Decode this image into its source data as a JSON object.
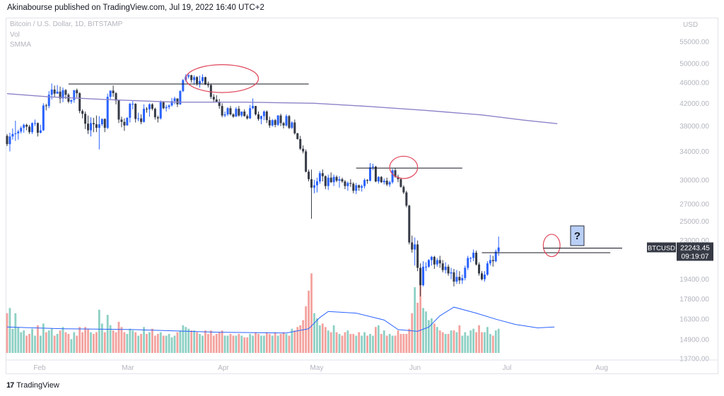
{
  "header": {
    "text": "Akinabourse published on TradingView.com, Jul 19, 2022 16:40 UTC+2"
  },
  "legend": {
    "symbol": "Bitcoin / U.S. Dollar, 1D, BITSTAMP",
    "vol": "Vol",
    "smma": "SMMA"
  },
  "footer": {
    "brand": "TradingView",
    "logo": "17"
  },
  "price_label": {
    "ticker": "BTCUSD",
    "price": "22243.45",
    "countdown": "09:19:07"
  },
  "annotation": {
    "text": "?"
  },
  "colors": {
    "up": "#2962ff",
    "down": "#363a45",
    "smma": "#8c83c8",
    "vol_up": "#8dd0c4",
    "vol_down": "#f3a29e",
    "vol_ma": "#2962ff",
    "circle": "#e0465a"
  },
  "chart_data": {
    "type": "candlestick",
    "y_axis": {
      "unit": "USD",
      "scale": "log",
      "ticks": [
        55000,
        50000,
        46000,
        42000,
        38000,
        34000,
        30000,
        27000,
        25000,
        23000,
        19400,
        17800,
        16300,
        14900,
        13700
      ],
      "tick_labels": [
        "55000.00",
        "50000.00",
        "46000.00",
        "42000.00",
        "38000.00",
        "34000.00",
        "30000.00",
        "27000.00",
        "25000.00",
        "23000.00",
        "19400.00",
        "17800.00",
        "16300.00",
        "14900.00",
        "13700.00"
      ]
    },
    "x_axis": {
      "ticks": [
        "Feb",
        "Mar",
        "Apr",
        "May",
        "Jun",
        "Jul",
        "Aug"
      ]
    },
    "start_date": "2022-01-22",
    "ohlc": [
      [
        36400,
        36700,
        34800,
        35100
      ],
      [
        35100,
        36900,
        34000,
        36300
      ],
      [
        36300,
        37600,
        35800,
        36700
      ],
      [
        36700,
        38900,
        35600,
        36800
      ],
      [
        36800,
        37400,
        35800,
        37100
      ],
      [
        37100,
        38000,
        36800,
        37700
      ],
      [
        37700,
        38400,
        36900,
        38200
      ],
      [
        38200,
        38400,
        37300,
        37900
      ],
      [
        37900,
        38200,
        36700,
        37000
      ],
      [
        37000,
        38600,
        36700,
        38500
      ],
      [
        38500,
        39100,
        38000,
        38500
      ],
      [
        38500,
        38600,
        36300,
        36900
      ],
      [
        36900,
        38200,
        36800,
        37300
      ],
      [
        37300,
        42000,
        37200,
        41600
      ],
      [
        41600,
        41900,
        40700,
        41500
      ],
      [
        41500,
        44300,
        41100,
        43600
      ],
      [
        43600,
        45800,
        42700,
        44600
      ],
      [
        44600,
        45400,
        43200,
        43800
      ],
      [
        43800,
        45500,
        43800,
        44200
      ],
      [
        44200,
        45200,
        42000,
        42900
      ],
      [
        42900,
        45000,
        42200,
        44500
      ],
      [
        44500,
        44700,
        42800,
        43600
      ],
      [
        43600,
        43900,
        42000,
        42300
      ],
      [
        42300,
        42700,
        41900,
        42600
      ],
      [
        42600,
        44400,
        42100,
        44500
      ],
      [
        44500,
        44800,
        43100,
        43900
      ],
      [
        43900,
        44100,
        40200,
        40600
      ],
      [
        40600,
        40900,
        39300,
        40100
      ],
      [
        40100,
        40500,
        37500,
        38400
      ],
      [
        38400,
        39800,
        36700,
        37300
      ],
      [
        37300,
        39500,
        36300,
        38500
      ],
      [
        38500,
        39400,
        37000,
        38300
      ],
      [
        38300,
        39800,
        37000,
        37700
      ],
      [
        37700,
        39700,
        34300,
        38300
      ],
      [
        38300,
        39300,
        38000,
        39200
      ],
      [
        39200,
        39300,
        37000,
        37700
      ],
      [
        37700,
        43800,
        37500,
        43200
      ],
      [
        43200,
        44400,
        42800,
        44400
      ],
      [
        44400,
        45400,
        43200,
        43900
      ],
      [
        43900,
        44100,
        41800,
        42500
      ],
      [
        42500,
        42700,
        38500,
        39100
      ],
      [
        39100,
        39600,
        37800,
        38700
      ],
      [
        38700,
        39300,
        37200,
        38100
      ],
      [
        38100,
        39500,
        38100,
        39400
      ],
      [
        39400,
        42100,
        38600,
        41900
      ],
      [
        41900,
        42400,
        40900,
        41900
      ],
      [
        41900,
        42000,
        38600,
        39200
      ],
      [
        39200,
        40300,
        38800,
        39300
      ],
      [
        39300,
        40000,
        38300,
        38700
      ],
      [
        38700,
        41800,
        38600,
        41000
      ],
      [
        41000,
        41300,
        40300,
        40900
      ],
      [
        40900,
        42000,
        39600,
        41800
      ],
      [
        41800,
        42000,
        40700,
        41000
      ],
      [
        41000,
        41200,
        39100,
        39500
      ],
      [
        39500,
        39800,
        38600,
        39300
      ],
      [
        39300,
        42500,
        39100,
        42200
      ],
      [
        42200,
        42400,
        40900,
        41100
      ],
      [
        41100,
        41700,
        40500,
        41300
      ],
      [
        41300,
        41800,
        40900,
        41600
      ],
      [
        41600,
        43000,
        41400,
        42400
      ],
      [
        42400,
        43200,
        41800,
        42900
      ],
      [
        42900,
        42900,
        41300,
        41800
      ],
      [
        41800,
        44500,
        41700,
        44300
      ],
      [
        44300,
        46700,
        44100,
        46500
      ],
      [
        46500,
        47700,
        46200,
        47200
      ],
      [
        47200,
        47800,
        46800,
        47500
      ],
      [
        47500,
        47600,
        46000,
        46500
      ],
      [
        46500,
        47500,
        45600,
        47100
      ],
      [
        47100,
        47300,
        45400,
        45800
      ],
      [
        45800,
        47400,
        45000,
        46300
      ],
      [
        46300,
        47700,
        45900,
        47100
      ],
      [
        47100,
        47200,
        45500,
        45600
      ],
      [
        45600,
        46200,
        45000,
        45500
      ],
      [
        45500,
        45700,
        42800,
        43200
      ],
      [
        43200,
        43700,
        42200,
        42700
      ],
      [
        42700,
        43500,
        42100,
        42300
      ],
      [
        42300,
        42800,
        41000,
        41500
      ],
      [
        41500,
        42000,
        39500,
        39800
      ],
      [
        39800,
        40500,
        39500,
        40000
      ],
      [
        40000,
        41300,
        39700,
        41100
      ],
      [
        41100,
        41500,
        39800,
        40000
      ],
      [
        40000,
        40200,
        39400,
        39600
      ],
      [
        39600,
        41300,
        39600,
        41000
      ],
      [
        41000,
        41500,
        39600,
        39800
      ],
      [
        39800,
        40500,
        39500,
        40500
      ],
      [
        40500,
        40900,
        39600,
        39700
      ],
      [
        39700,
        40000,
        39100,
        39300
      ],
      [
        39300,
        41700,
        39200,
        41100
      ],
      [
        41100,
        42900,
        40900,
        41500
      ],
      [
        41500,
        41500,
        39800,
        40000
      ],
      [
        40000,
        40500,
        38900,
        39200
      ],
      [
        39200,
        39800,
        38300,
        39700
      ],
      [
        39700,
        40700,
        39000,
        40500
      ],
      [
        40500,
        40700,
        38500,
        39000
      ],
      [
        39000,
        39600,
        37700,
        38100
      ],
      [
        38100,
        39200,
        37900,
        39000
      ],
      [
        39000,
        39200,
        37800,
        38200
      ],
      [
        38200,
        39900,
        38000,
        39800
      ],
      [
        39800,
        40100,
        38000,
        38500
      ],
      [
        38500,
        38700,
        37600,
        38100
      ],
      [
        38100,
        40000,
        37900,
        39700
      ],
      [
        39700,
        39900,
        37500,
        37700
      ],
      [
        37700,
        38800,
        37500,
        38600
      ],
      [
        38600,
        39100,
        36600,
        36800
      ],
      [
        36800,
        36900,
        35800,
        35900
      ],
      [
        35900,
        36400,
        34200,
        34400
      ],
      [
        34400,
        34900,
        33700,
        34000
      ],
      [
        34000,
        34300,
        31000,
        31100
      ],
      [
        31100,
        31400,
        29800,
        30100
      ],
      [
        30100,
        31400,
        25300,
        29000
      ],
      [
        29000,
        30000,
        28300,
        29300
      ],
      [
        29300,
        30300,
        28400,
        29800
      ],
      [
        29800,
        31200,
        29500,
        30900
      ],
      [
        30900,
        31400,
        29800,
        30500
      ],
      [
        30500,
        30600,
        28800,
        29200
      ],
      [
        29200,
        30700,
        28700,
        30300
      ],
      [
        30300,
        31000,
        29600,
        29700
      ],
      [
        29700,
        30700,
        29200,
        30400
      ],
      [
        30400,
        30600,
        29700,
        29900
      ],
      [
        29900,
        30500,
        29000,
        30100
      ],
      [
        30100,
        30300,
        29600,
        29800
      ],
      [
        29800,
        30000,
        28800,
        29200
      ],
      [
        29200,
        29800,
        28600,
        29600
      ],
      [
        29600,
        30100,
        29100,
        29500
      ],
      [
        29500,
        29700,
        28300,
        28600
      ],
      [
        28600,
        29600,
        28200,
        29300
      ],
      [
        29300,
        29400,
        28600,
        29000
      ],
      [
        29000,
        29400,
        28500,
        29200
      ],
      [
        29200,
        30200,
        28900,
        30000
      ],
      [
        30000,
        30100,
        29500,
        29900
      ],
      [
        29900,
        32300,
        29800,
        31700
      ],
      [
        31700,
        32200,
        31300,
        31800
      ],
      [
        31800,
        31900,
        29700,
        29800
      ],
      [
        29800,
        30500,
        29500,
        30400
      ],
      [
        30400,
        30500,
        29600,
        29700
      ],
      [
        29700,
        30200,
        29400,
        29900
      ],
      [
        29900,
        30300,
        29200,
        29400
      ],
      [
        29400,
        29900,
        29100,
        29700
      ],
      [
        29700,
        31500,
        29500,
        31300
      ],
      [
        31300,
        31600,
        30300,
        30400
      ],
      [
        30400,
        30700,
        29700,
        30100
      ],
      [
        30100,
        30300,
        29000,
        29100
      ],
      [
        29100,
        29300,
        28200,
        28400
      ],
      [
        28400,
        28600,
        26600,
        26800
      ],
      [
        26800,
        26900,
        22600,
        22800
      ],
      [
        22800,
        23500,
        21800,
        22100
      ],
      [
        22100,
        23300,
        20600,
        22600
      ],
      [
        22600,
        23000,
        20100,
        20400
      ],
      [
        20400,
        20800,
        18000,
        18900
      ],
      [
        18900,
        21000,
        18800,
        20500
      ],
      [
        20500,
        20900,
        20100,
        20500
      ],
      [
        20500,
        21200,
        20400,
        21100
      ],
      [
        21100,
        21500,
        20600,
        21400
      ],
      [
        21400,
        21500,
        20300,
        20700
      ],
      [
        20700,
        21300,
        20500,
        21100
      ],
      [
        21100,
        21500,
        20400,
        20800
      ],
      [
        20800,
        21100,
        20000,
        20200
      ],
      [
        20200,
        20900,
        19900,
        20500
      ],
      [
        20500,
        20700,
        19700,
        19900
      ],
      [
        19900,
        20400,
        19400,
        20000
      ],
      [
        20000,
        20300,
        18800,
        19200
      ],
      [
        19200,
        20200,
        19000,
        19600
      ],
      [
        19600,
        20100,
        19000,
        19300
      ],
      [
        19300,
        19800,
        19000,
        19500
      ],
      [
        19500,
        20600,
        19300,
        20400
      ],
      [
        20400,
        21500,
        20200,
        21300
      ],
      [
        21300,
        21400,
        20900,
        21300
      ],
      [
        21300,
        22100,
        21000,
        21800
      ],
      [
        21800,
        22000,
        20600,
        20700
      ],
      [
        20700,
        20900,
        19700,
        19900
      ],
      [
        19900,
        20100,
        19300,
        19400
      ],
      [
        19400,
        20100,
        19200,
        19800
      ],
      [
        19800,
        21000,
        19700,
        20800
      ],
      [
        20800,
        21600,
        20600,
        21100
      ],
      [
        21100,
        21500,
        20500,
        21000
      ],
      [
        21000,
        22100,
        20900,
        21900
      ],
      [
        21900,
        23400,
        21500,
        22300
      ]
    ],
    "volume": [
      2.3,
      2.6,
      1.4,
      2.3,
      1.5,
      1.2,
      1.3,
      1.0,
      1.1,
      1.4,
      1.0,
      1.6,
      1.0,
      1.7,
      1.2,
      1.3,
      1.4,
      1.0,
      1.1,
      1.3,
      1.5,
      1.2,
      1.1,
      0.8,
      1.2,
      1.0,
      1.5,
      1.2,
      1.5,
      1.4,
      1.2,
      1.1,
      1.2,
      2.5,
      1.7,
      1.2,
      2.2,
      1.6,
      1.3,
      1.2,
      1.8,
      1.5,
      1.2,
      1.1,
      1.4,
      1.3,
      1.2,
      1.0,
      1.1,
      1.5,
      1.1,
      1.2,
      1.4,
      1.0,
      1.1,
      1.2,
      1.0,
      1.0,
      1.1,
      0.9,
      1.0,
      1.2,
      1.3,
      1.6,
      1.5,
      1.4,
      1.3,
      1.3,
      1.2,
      1.1,
      1.0,
      1.3,
      1.1,
      1.3,
      1.0,
      1.1,
      1.2,
      1.3,
      1.0,
      1.0,
      1.1,
      1.0,
      1.0,
      1.1,
      1.0,
      0.9,
      0.9,
      1.1,
      1.0,
      1.2,
      1.1,
      1.0,
      1.0,
      1.2,
      1.1,
      1.0,
      1.2,
      1.0,
      1.1,
      1.2,
      1.1,
      1.0,
      1.4,
      1.3,
      1.5,
      1.6,
      1.9,
      2.7,
      3.6,
      4.6,
      2.3,
      2.0,
      1.6,
      1.7,
      1.5,
      1.3,
      1.2,
      1.6,
      1.2,
      1.1,
      1.0,
      1.2,
      1.3,
      1.1,
      1.1,
      1.0,
      1.2,
      1.0,
      1.2,
      1.0,
      1.1,
      1.0,
      1.5,
      1.6,
      1.1,
      1.3,
      1.0,
      1.1,
      1.0,
      1.0,
      1.3,
      1.1,
      1.1,
      1.1,
      1.4,
      2.3,
      3.8,
      2.9,
      4.1,
      2.6,
      2.4,
      1.9,
      2.0,
      1.7,
      1.5,
      1.3,
      1.2,
      1.1,
      1.1,
      1.3,
      1.3,
      1.2,
      1.6,
      1.0,
      1.2,
      1.0,
      1.3,
      1.4,
      1.2,
      1.6,
      1.2,
      1.2,
      1.5,
      1.1,
      1.0,
      1.3,
      1.4,
      1.8,
      1.2
    ],
    "smma": [
      [
        0,
        43800
      ],
      [
        15,
        43200
      ],
      [
        35,
        42700
      ],
      [
        60,
        42200
      ],
      [
        85,
        42200
      ],
      [
        110,
        42000
      ],
      [
        130,
        41400
      ],
      [
        150,
        40700
      ],
      [
        170,
        39900
      ],
      [
        185,
        39000
      ],
      [
        197,
        38400
      ]
    ],
    "vol_ma": [
      [
        0,
        1.5
      ],
      [
        20,
        1.4
      ],
      [
        45,
        1.35
      ],
      [
        75,
        1.2
      ],
      [
        100,
        1.15
      ],
      [
        108,
        1.4
      ],
      [
        112,
        2.05
      ],
      [
        115,
        2.4
      ],
      [
        125,
        2.3
      ],
      [
        135,
        1.9
      ],
      [
        140,
        1.35
      ],
      [
        147,
        1.25
      ],
      [
        151,
        1.5
      ],
      [
        155,
        2.15
      ],
      [
        160,
        2.65
      ],
      [
        168,
        2.3
      ],
      [
        175,
        1.95
      ],
      [
        182,
        1.65
      ],
      [
        190,
        1.45
      ],
      [
        196,
        1.5
      ]
    ],
    "resistance_lines": [
      {
        "price": 45700,
        "x_start": 22,
        "x_end": 108
      },
      {
        "price": 31600,
        "x_start": 125,
        "x_end": 163
      },
      {
        "price": 21800,
        "x_start": 170,
        "x_end": 216
      }
    ],
    "circles": [
      {
        "center_index": 77,
        "price": 46800,
        "rx": 13,
        "ry": 5
      },
      {
        "center_index": 142,
        "price": 31700,
        "rx": 5,
        "ry": 4
      },
      {
        "center_index": 195,
        "price": 22500,
        "rx": 3,
        "ry": 4
      }
    ],
    "last_price": 22243.45
  }
}
